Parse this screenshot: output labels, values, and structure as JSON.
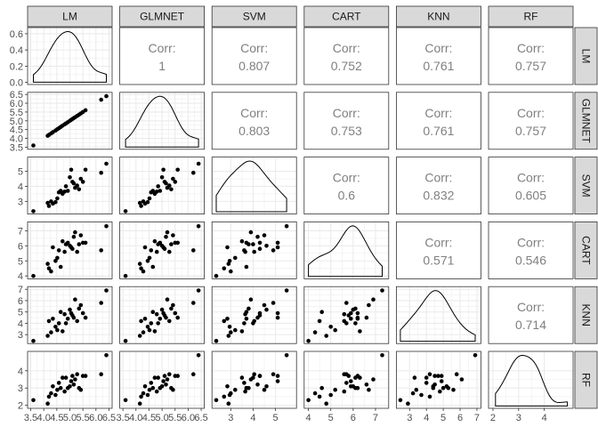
{
  "chart_data": {
    "type": "scatter",
    "variables": [
      "LM",
      "GLMNET",
      "SVM",
      "CART",
      "KNN",
      "RF"
    ],
    "corr_label": "Corr:",
    "correlations": [
      {
        "row": "GLMNET",
        "col": "LM",
        "value": "1"
      },
      {
        "row": "SVM",
        "col": "LM",
        "value": "0.807"
      },
      {
        "row": "CART",
        "col": "LM",
        "value": "0.752"
      },
      {
        "row": "KNN",
        "col": "LM",
        "value": "0.761"
      },
      {
        "row": "RF",
        "col": "LM",
        "value": "0.757"
      },
      {
        "row": "SVM",
        "col": "GLMNET",
        "value": "0.803"
      },
      {
        "row": "CART",
        "col": "GLMNET",
        "value": "0.753"
      },
      {
        "row": "KNN",
        "col": "GLMNET",
        "value": "0.761"
      },
      {
        "row": "RF",
        "col": "GLMNET",
        "value": "0.757"
      },
      {
        "row": "CART",
        "col": "SVM",
        "value": "0.6"
      },
      {
        "row": "KNN",
        "col": "SVM",
        "value": "0.832"
      },
      {
        "row": "RF",
        "col": "SVM",
        "value": "0.605"
      },
      {
        "row": "KNN",
        "col": "CART",
        "value": "0.571"
      },
      {
        "row": "RF",
        "col": "CART",
        "value": "0.546"
      },
      {
        "row": "RF",
        "col": "KNN",
        "value": "0.714"
      }
    ],
    "axes": {
      "LM": {
        "range": [
          3.5,
          6.5
        ],
        "ticks": [
          3.5,
          4.0,
          4.5,
          5.0,
          5.5,
          6.0,
          6.5
        ],
        "tick_labels": [
          "3.5",
          "4.0",
          "4.5",
          "5.0",
          "5.5",
          "6.0",
          "6.5"
        ]
      },
      "GLMNET": {
        "range": [
          3.5,
          6.5
        ],
        "ticks": [
          3.5,
          4.0,
          4.5,
          5.0,
          5.5,
          6.0,
          6.5
        ],
        "tick_labels": [
          "3.5",
          "4.0",
          "4.5",
          "5.0",
          "5.5",
          "6.0",
          "6.5"
        ]
      },
      "SVM": {
        "range": [
          2.3,
          5.8
        ],
        "ticks": [
          3,
          4,
          5
        ],
        "tick_labels": [
          "3",
          "4",
          "5"
        ]
      },
      "CART": {
        "range": [
          3.95,
          7.45
        ],
        "ticks": [
          4,
          5,
          6,
          7
        ],
        "tick_labels": [
          "4",
          "5",
          "6",
          "7"
        ]
      },
      "KNN": {
        "range": [
          2.4,
          7.05
        ],
        "ticks": [
          3,
          4,
          5,
          6,
          7
        ],
        "tick_labels": [
          "3",
          "4",
          "5",
          "6",
          "7"
        ]
      },
      "RF": {
        "range": [
          1.95,
          5.0
        ],
        "ticks": [
          2,
          3,
          4
        ],
        "tick_labels": [
          "2",
          "3",
          "4"
        ]
      }
    },
    "density_axis": {
      "range": [
        0,
        0.65
      ],
      "ticks": [
        0,
        0.2,
        0.4,
        0.6
      ],
      "tick_labels": [
        "0.0",
        "0.2",
        "0.4",
        "0.6"
      ]
    },
    "observations": {
      "LM": [
        3.6,
        4.15,
        4.2,
        4.28,
        4.35,
        4.45,
        4.52,
        4.58,
        4.65,
        4.72,
        4.8,
        4.85,
        4.92,
        5.0,
        5.05,
        5.1,
        5.15,
        5.2,
        5.28,
        5.35,
        5.42,
        5.5,
        5.6,
        6.2,
        6.4
      ],
      "GLMNET": [
        3.6,
        4.15,
        4.2,
        4.28,
        4.35,
        4.45,
        4.52,
        4.58,
        4.65,
        4.72,
        4.8,
        4.85,
        4.92,
        5.0,
        5.05,
        5.1,
        5.15,
        5.2,
        5.28,
        5.35,
        5.42,
        5.5,
        5.6,
        6.2,
        6.4
      ],
      "SVM": [
        2.35,
        2.9,
        2.7,
        3.0,
        2.85,
        2.95,
        3.2,
        3.6,
        3.7,
        3.5,
        3.65,
        4.0,
        3.7,
        4.6,
        5.1,
        4.3,
        4.2,
        3.9,
        4.05,
        3.8,
        4.5,
        4.3,
        5.1,
        4.9,
        5.5
      ],
      "CART": [
        4.0,
        4.8,
        4.5,
        4.3,
        5.9,
        5.0,
        5.2,
        5.7,
        4.6,
        6.3,
        5.6,
        6.1,
        6.2,
        6.0,
        5.9,
        5.8,
        6.6,
        6.9,
        5.6,
        6.1,
        6.7,
        6.2,
        6.2,
        5.7,
        7.3
      ],
      "KNN": [
        2.45,
        2.9,
        4.2,
        3.2,
        4.4,
        3.7,
        3.4,
        4.0,
        5.0,
        3.3,
        4.8,
        4.0,
        4.4,
        5.2,
        4.9,
        4.7,
        4.5,
        6.1,
        4.2,
        5.3,
        5.6,
        4.9,
        4.5,
        5.8,
        6.9
      ],
      "RF": [
        2.3,
        2.1,
        2.5,
        2.7,
        3.1,
        2.6,
        2.9,
        3.3,
        3.0,
        3.6,
        2.8,
        3.6,
        3.0,
        3.1,
        3.4,
        3.7,
        3.2,
        3.5,
        3.8,
        3.0,
        2.9,
        3.7,
        3.7,
        3.8,
        4.9
      ]
    },
    "grid": true,
    "colors": {
      "panel_border": "#333333",
      "strip_fill": "#d9d9d9",
      "grid": "#ebebeb",
      "points": "#000000",
      "corr_text": "#808080",
      "axis_text": "#4d4d4d"
    }
  }
}
